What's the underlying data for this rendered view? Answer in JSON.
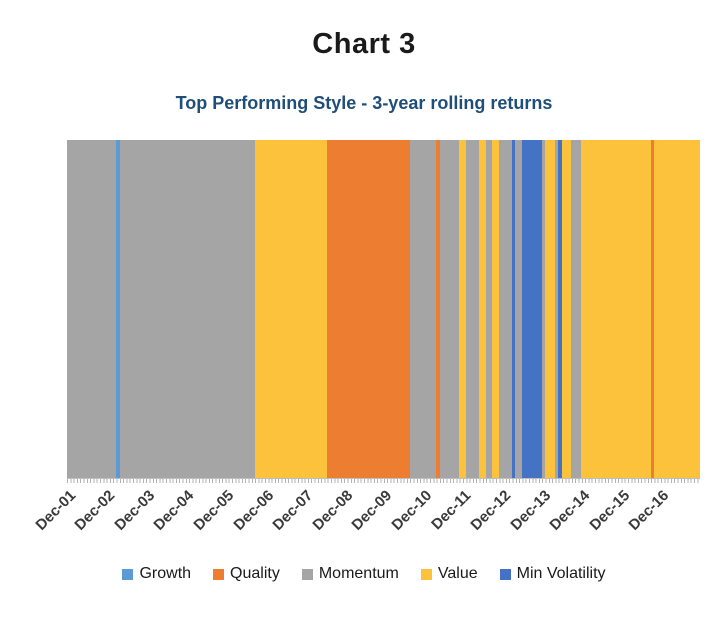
{
  "chart_data": {
    "type": "bar",
    "subtype": "full-height-timeline-stripes",
    "title": "Chart 3",
    "subtitle": "Top Performing Style - 3-year rolling returns",
    "legend_position": "bottom",
    "grid": false,
    "styles": {
      "Growth": "#5B9BD5",
      "Quality": "#ED7D31",
      "Momentum": "#A5A5A5",
      "Value": "#FCC23C",
      "Min Volatility": "#4472C4"
    },
    "legend": [
      "Growth",
      "Quality",
      "Momentum",
      "Value",
      "Min Volatility"
    ],
    "x_axis": {
      "labels": [
        "Dec-01",
        "Dec-02",
        "Dec-03",
        "Dec-04",
        "Dec-05",
        "Dec-06",
        "Dec-07",
        "Dec-08",
        "Dec-09",
        "Dec-10",
        "Dec-11",
        "Dec-12",
        "Dec-13",
        "Dec-14",
        "Dec-15",
        "Dec-16"
      ],
      "months_total": 192,
      "months_per_label": 12
    },
    "segments": [
      {
        "style": "Momentum",
        "months": 15
      },
      {
        "style": "Growth",
        "months": 1
      },
      {
        "style": "Momentum",
        "months": 41
      },
      {
        "style": "Value",
        "months": 22
      },
      {
        "style": "Quality",
        "months": 25
      },
      {
        "style": "Momentum",
        "months": 8
      },
      {
        "style": "Quality",
        "months": 1
      },
      {
        "style": "Momentum",
        "months": 6
      },
      {
        "style": "Value",
        "months": 2
      },
      {
        "style": "Momentum",
        "months": 4
      },
      {
        "style": "Value",
        "months": 2
      },
      {
        "style": "Momentum",
        "months": 2
      },
      {
        "style": "Value",
        "months": 2
      },
      {
        "style": "Momentum",
        "months": 4
      },
      {
        "style": "Min Volatility",
        "months": 1
      },
      {
        "style": "Momentum",
        "months": 2
      },
      {
        "style": "Min Volatility",
        "months": 6
      },
      {
        "style": "Momentum",
        "months": 1
      },
      {
        "style": "Value",
        "months": 3
      },
      {
        "style": "Momentum",
        "months": 1
      },
      {
        "style": "Min Volatility",
        "months": 1
      },
      {
        "style": "Value",
        "months": 3
      },
      {
        "style": "Momentum",
        "months": 3
      },
      {
        "style": "Value",
        "months": 21
      },
      {
        "style": "Quality",
        "months": 1
      },
      {
        "style": "Value",
        "months": 14
      }
    ]
  }
}
